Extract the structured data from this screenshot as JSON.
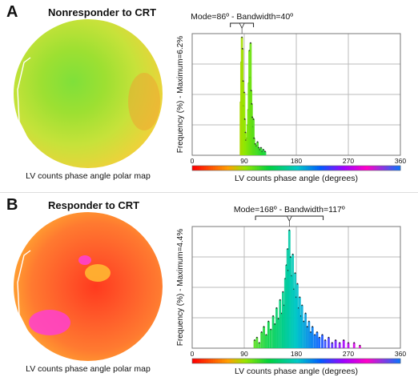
{
  "panels": [
    {
      "letter": "A",
      "title": "Nonresponder to CRT",
      "polar_caption": "LV counts phase angle polar map",
      "polar_colors": [
        "#7fe03a",
        "#9de032",
        "#c7e23a",
        "#f2d03a",
        "#f0a030"
      ]
    },
    {
      "letter": "B",
      "title": "Responder to CRT",
      "polar_caption": "LV counts phase angle polar map",
      "polar_colors": [
        "#ff3a1e",
        "#ff5a2a",
        "#ff7a30",
        "#ffb832",
        "#ff40d0"
      ]
    }
  ],
  "chart_data": [
    {
      "type": "bar",
      "annotation": "Mode=86º - Bandwidth=40º",
      "ylabel": "Frequency (%) - Maximum=6.2%",
      "xlabel": "LV counts phase angle (degrees)",
      "xlim": [
        0,
        360
      ],
      "xticks": [
        "0",
        "90",
        "180",
        "270",
        "360"
      ],
      "mode": 86,
      "bandwidth": 40,
      "max_percent": 6.2,
      "bins": [
        {
          "x": 84,
          "v": 2.8
        },
        {
          "x": 85,
          "v": 4.9
        },
        {
          "x": 86,
          "v": 6.2
        },
        {
          "x": 87,
          "v": 5.6
        },
        {
          "x": 88,
          "v": 3.9
        },
        {
          "x": 89,
          "v": 2.6
        },
        {
          "x": 90,
          "v": 3.3
        },
        {
          "x": 91,
          "v": 1.9
        },
        {
          "x": 92,
          "v": 1.2
        },
        {
          "x": 93,
          "v": 0.8
        },
        {
          "x": 95,
          "v": 0.9
        },
        {
          "x": 96,
          "v": 1.6
        },
        {
          "x": 97,
          "v": 2.4
        },
        {
          "x": 98,
          "v": 3.8
        },
        {
          "x": 99,
          "v": 5.5
        },
        {
          "x": 100,
          "v": 4.1
        },
        {
          "x": 101,
          "v": 5.9
        },
        {
          "x": 102,
          "v": 3.4
        },
        {
          "x": 103,
          "v": 2.7
        },
        {
          "x": 104,
          "v": 2.0
        },
        {
          "x": 105,
          "v": 1.5
        },
        {
          "x": 106,
          "v": 1.9
        },
        {
          "x": 107,
          "v": 0.9
        },
        {
          "x": 109,
          "v": 0.6
        },
        {
          "x": 111,
          "v": 0.5
        },
        {
          "x": 113,
          "v": 0.7
        },
        {
          "x": 115,
          "v": 0.4
        },
        {
          "x": 117,
          "v": 0.3
        },
        {
          "x": 119,
          "v": 0.4
        },
        {
          "x": 121,
          "v": 0.2
        },
        {
          "x": 123,
          "v": 0.3
        },
        {
          "x": 126,
          "v": 0.2
        }
      ]
    },
    {
      "type": "bar",
      "annotation": "Mode=168º - Bandwidth=117º",
      "ylabel": "Frequency (%) - Maximum=4.4%",
      "xlabel": "LV counts phase angle (degrees)",
      "xlim": [
        0,
        360
      ],
      "xticks": [
        "0",
        "90",
        "180",
        "270",
        "360"
      ],
      "mode": 168,
      "bandwidth": 117,
      "max_percent": 4.4,
      "bins": [
        {
          "x": 108,
          "v": 0.3
        },
        {
          "x": 112,
          "v": 0.4
        },
        {
          "x": 116,
          "v": 0.2
        },
        {
          "x": 120,
          "v": 0.6
        },
        {
          "x": 124,
          "v": 0.8
        },
        {
          "x": 128,
          "v": 0.5
        },
        {
          "x": 132,
          "v": 1.0
        },
        {
          "x": 136,
          "v": 0.7
        },
        {
          "x": 140,
          "v": 1.2
        },
        {
          "x": 143,
          "v": 0.9
        },
        {
          "x": 146,
          "v": 1.5
        },
        {
          "x": 149,
          "v": 1.1
        },
        {
          "x": 152,
          "v": 1.8
        },
        {
          "x": 155,
          "v": 1.3
        },
        {
          "x": 157,
          "v": 2.1
        },
        {
          "x": 159,
          "v": 1.6
        },
        {
          "x": 161,
          "v": 2.6
        },
        {
          "x": 163,
          "v": 3.1
        },
        {
          "x": 165,
          "v": 3.7
        },
        {
          "x": 166,
          "v": 2.9
        },
        {
          "x": 168,
          "v": 4.4
        },
        {
          "x": 170,
          "v": 3.4
        },
        {
          "x": 172,
          "v": 2.7
        },
        {
          "x": 174,
          "v": 3.5
        },
        {
          "x": 176,
          "v": 2.2
        },
        {
          "x": 178,
          "v": 2.8
        },
        {
          "x": 180,
          "v": 1.9
        },
        {
          "x": 182,
          "v": 2.4
        },
        {
          "x": 184,
          "v": 1.5
        },
        {
          "x": 186,
          "v": 1.9
        },
        {
          "x": 188,
          "v": 1.2
        },
        {
          "x": 190,
          "v": 1.6
        },
        {
          "x": 193,
          "v": 1.0
        },
        {
          "x": 196,
          "v": 1.3
        },
        {
          "x": 199,
          "v": 0.8
        },
        {
          "x": 202,
          "v": 1.0
        },
        {
          "x": 205,
          "v": 0.6
        },
        {
          "x": 208,
          "v": 0.8
        },
        {
          "x": 212,
          "v": 0.5
        },
        {
          "x": 216,
          "v": 0.6
        },
        {
          "x": 220,
          "v": 0.4
        },
        {
          "x": 225,
          "v": 0.5
        },
        {
          "x": 230,
          "v": 0.3
        },
        {
          "x": 236,
          "v": 0.4
        },
        {
          "x": 242,
          "v": 0.2
        },
        {
          "x": 248,
          "v": 0.3
        },
        {
          "x": 255,
          "v": 0.2
        },
        {
          "x": 262,
          "v": 0.3
        },
        {
          "x": 270,
          "v": 0.2
        },
        {
          "x": 280,
          "v": 0.2
        },
        {
          "x": 290,
          "v": 0.1
        }
      ]
    }
  ]
}
